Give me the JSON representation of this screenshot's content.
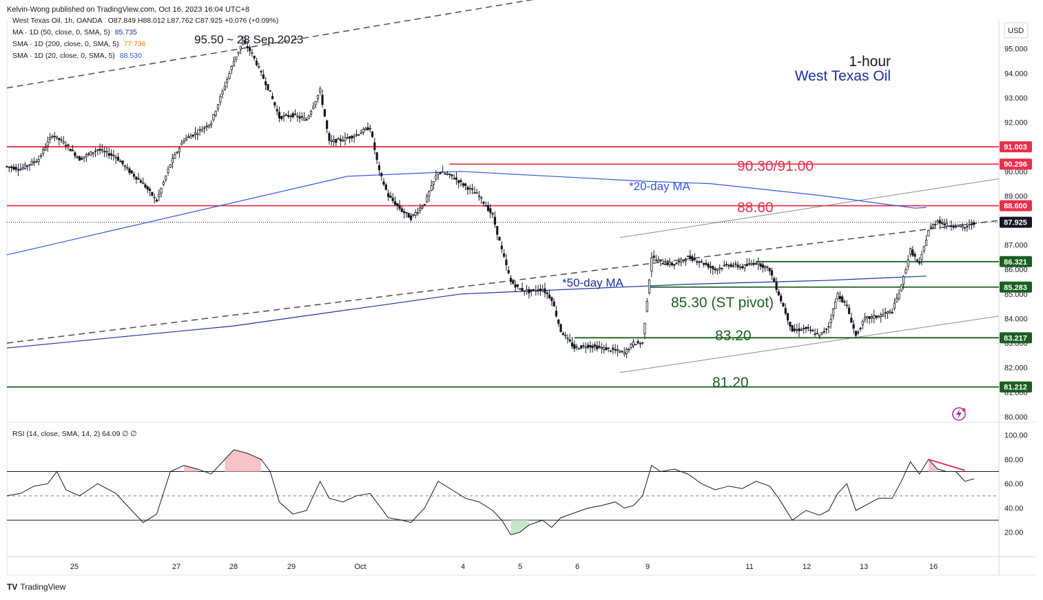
{
  "header": {
    "published": "Kelvin-Wong published on TradingView.com, Oct 16, 2023 16:04 UTC+8"
  },
  "legend": {
    "symbol_line": "West Texas Oil, 1h, OANDA",
    "ohlc": "O87.849  H88.012  L87.762  C87.925  +0.076 (+0.09%)",
    "ma50_label": "MA · 1D (50, close, 0, SMA, 5)",
    "ma50_value": "85.735",
    "sma200_label": "SMA · 1D (200, close, 0, SMA, 5)",
    "sma200_value": "77.736",
    "sma20_label": "SMA · 1D (20, close, 0, SMA, 5)",
    "sma20_value": "88.530"
  },
  "rsi_legend": "RSI (14, close, SMA, 14, 2)  64.09  ∅  ∅",
  "footer": {
    "logo": "TV",
    "brand": "TradingView"
  },
  "colors": {
    "up": "#131722",
    "resistance": "#e8304a",
    "support": "#1b5e20",
    "ma20": "#3355dd",
    "ma50": "#1a2f9c",
    "price_tag": "#131722",
    "rsi_overbought_fill": "#f6c3c7",
    "rsi_oversold_fill": "#c8e6c9"
  },
  "chart_data": {
    "type": "candlestick",
    "currency": "USD",
    "y_ticks": [
      "95.000",
      "94.000",
      "93.000",
      "92.000",
      "91.000",
      "90.000",
      "89.000",
      "88.000",
      "87.000",
      "86.000",
      "85.000",
      "84.000",
      "83.000",
      "82.000",
      "81.000",
      "80.000"
    ],
    "ylim": [
      79.8,
      96.2
    ],
    "x_ticks": [
      "25",
      "27",
      "28",
      "29",
      "Oct",
      "4",
      "5",
      "6",
      "9",
      "11",
      "12",
      "13",
      "16"
    ],
    "price_tags": [
      {
        "label": "91.003",
        "value": 91.003,
        "color": "#e8304a"
      },
      {
        "label": "90.296",
        "value": 90.296,
        "color": "#e8304a"
      },
      {
        "label": "88.600",
        "value": 88.6,
        "color": "#e8304a"
      },
      {
        "label": "87.925",
        "value": 87.925,
        "color": "#131722"
      },
      {
        "label": "86.321",
        "value": 86.321,
        "color": "#1b5e20"
      },
      {
        "label": "85.283",
        "value": 85.283,
        "color": "#1b5e20"
      },
      {
        "label": "83.217",
        "value": 83.217,
        "color": "#1b5e20"
      },
      {
        "label": "81.212",
        "value": 81.212,
        "color": "#1b5e20"
      }
    ],
    "horizontal_levels": [
      {
        "value": 91.003,
        "color": "#e8304a",
        "label": "90.30/91.00"
      },
      {
        "value": 90.296,
        "color": "#e8304a",
        "label": ""
      },
      {
        "value": 88.6,
        "color": "#e8304a",
        "label": "88.60"
      },
      {
        "value": 86.321,
        "color": "#1b5e20",
        "label": ""
      },
      {
        "value": 85.283,
        "color": "#1b5e20",
        "label": "85.30 (ST pivot)"
      },
      {
        "value": 83.217,
        "color": "#1b5e20",
        "label": "83.20"
      },
      {
        "value": 81.212,
        "color": "#1b5e20",
        "label": "81.20"
      }
    ],
    "annotations": {
      "peak": "95.50 ~ 28 Sep 2023",
      "timeframe": "1-hour",
      "instrument": "West Texas Oil",
      "ma20": "*20-day MA",
      "ma50": "*50-day MA"
    },
    "price_path": [
      [
        0,
        90.2
      ],
      [
        6,
        90.1
      ],
      [
        14,
        90.5
      ],
      [
        20,
        91.5
      ],
      [
        26,
        91.1
      ],
      [
        32,
        90.5
      ],
      [
        40,
        90.9
      ],
      [
        48,
        90.6
      ],
      [
        54,
        90.0
      ],
      [
        60,
        89.5
      ],
      [
        66,
        88.8
      ],
      [
        72,
        90.3
      ],
      [
        78,
        91.3
      ],
      [
        84,
        91.6
      ],
      [
        90,
        92.0
      ],
      [
        96,
        93.5
      ],
      [
        100,
        94.5
      ],
      [
        104,
        95.3
      ],
      [
        108,
        94.8
      ],
      [
        112,
        94.0
      ],
      [
        116,
        93.2
      ],
      [
        120,
        92.2
      ],
      [
        126,
        92.3
      ],
      [
        132,
        92.1
      ],
      [
        138,
        93.3
      ],
      [
        142,
        91.2
      ],
      [
        148,
        91.3
      ],
      [
        154,
        91.5
      ],
      [
        160,
        91.8
      ],
      [
        164,
        90.0
      ],
      [
        168,
        89.0
      ],
      [
        174,
        88.4
      ],
      [
        178,
        88.1
      ],
      [
        184,
        88.7
      ],
      [
        190,
        90.0
      ],
      [
        196,
        89.8
      ],
      [
        202,
        89.4
      ],
      [
        208,
        89.0
      ],
      [
        214,
        88.2
      ],
      [
        218,
        86.8
      ],
      [
        222,
        85.5
      ],
      [
        226,
        85.2
      ],
      [
        230,
        85.1
      ],
      [
        236,
        85.2
      ],
      [
        240,
        84.8
      ],
      [
        244,
        83.5
      ],
      [
        250,
        82.8
      ],
      [
        256,
        82.9
      ],
      [
        262,
        82.8
      ],
      [
        268,
        82.7
      ],
      [
        272,
        82.6
      ],
      [
        276,
        83.0
      ],
      [
        280,
        83.0
      ],
      [
        284,
        86.5
      ],
      [
        288,
        86.3
      ],
      [
        294,
        86.2
      ],
      [
        300,
        86.5
      ],
      [
        306,
        86.3
      ],
      [
        312,
        86.0
      ],
      [
        318,
        86.2
      ],
      [
        324,
        86.1
      ],
      [
        330,
        86.3
      ],
      [
        336,
        86.0
      ],
      [
        340,
        85.0
      ],
      [
        346,
        83.5
      ],
      [
        352,
        83.6
      ],
      [
        358,
        83.3
      ],
      [
        362,
        83.7
      ],
      [
        366,
        85.0
      ],
      [
        370,
        84.5
      ],
      [
        374,
        83.3
      ],
      [
        378,
        84.0
      ],
      [
        384,
        84.1
      ],
      [
        390,
        84.3
      ],
      [
        394,
        85.3
      ],
      [
        398,
        86.8
      ],
      [
        402,
        86.2
      ],
      [
        406,
        87.6
      ],
      [
        410,
        88.0
      ],
      [
        414,
        87.8
      ],
      [
        418,
        87.8
      ],
      [
        422,
        87.7
      ],
      [
        426,
        87.9
      ]
    ],
    "ma20_path": [
      [
        0,
        86.6
      ],
      [
        150,
        89.8
      ],
      [
        200,
        90.0
      ],
      [
        280,
        89.6
      ],
      [
        310,
        89.5
      ],
      [
        360,
        89.0
      ],
      [
        400,
        88.5
      ],
      [
        405,
        88.53
      ]
    ],
    "ma50_path": [
      [
        0,
        82.8
      ],
      [
        100,
        83.7
      ],
      [
        200,
        85.0
      ],
      [
        300,
        85.4
      ],
      [
        360,
        85.55
      ],
      [
        405,
        85.73
      ]
    ],
    "channel_upper_dashed": [
      [
        0,
        93.4
      ],
      [
        328,
        98.5
      ]
    ],
    "channel_lower_dashed": [
      [
        0,
        83.0
      ],
      [
        437,
        88.0
      ]
    ],
    "channel_upper_solid": [
      [
        270,
        87.3
      ],
      [
        437,
        89.7
      ]
    ],
    "channel_lower_solid": [
      [
        270,
        81.8
      ],
      [
        437,
        84.1
      ]
    ],
    "rsi": {
      "ylim": [
        0,
        110
      ],
      "y_ticks": [
        "100.00",
        "80.00",
        "60.00",
        "40.00",
        "20.00"
      ],
      "overbought": 70,
      "oversold": 30,
      "mid": 50,
      "path": [
        [
          0,
          50
        ],
        [
          6,
          52
        ],
        [
          12,
          58
        ],
        [
          18,
          60
        ],
        [
          22,
          70
        ],
        [
          26,
          55
        ],
        [
          32,
          50
        ],
        [
          40,
          60
        ],
        [
          48,
          52
        ],
        [
          54,
          40
        ],
        [
          60,
          28
        ],
        [
          66,
          35
        ],
        [
          72,
          70
        ],
        [
          78,
          75
        ],
        [
          84,
          72
        ],
        [
          90,
          68
        ],
        [
          96,
          80
        ],
        [
          100,
          88
        ],
        [
          106,
          85
        ],
        [
          112,
          80
        ],
        [
          116,
          70
        ],
        [
          120,
          45
        ],
        [
          126,
          35
        ],
        [
          132,
          38
        ],
        [
          138,
          62
        ],
        [
          142,
          48
        ],
        [
          148,
          45
        ],
        [
          154,
          50
        ],
        [
          160,
          52
        ],
        [
          164,
          42
        ],
        [
          168,
          32
        ],
        [
          174,
          30
        ],
        [
          178,
          28
        ],
        [
          184,
          40
        ],
        [
          190,
          62
        ],
        [
          196,
          55
        ],
        [
          202,
          48
        ],
        [
          208,
          45
        ],
        [
          214,
          38
        ],
        [
          218,
          30
        ],
        [
          222,
          18
        ],
        [
          226,
          20
        ],
        [
          230,
          26
        ],
        [
          236,
          30
        ],
        [
          240,
          24
        ],
        [
          244,
          32
        ],
        [
          250,
          36
        ],
        [
          256,
          40
        ],
        [
          262,
          42
        ],
        [
          268,
          45
        ],
        [
          272,
          40
        ],
        [
          276,
          42
        ],
        [
          280,
          50
        ],
        [
          284,
          75
        ],
        [
          288,
          70
        ],
        [
          294,
          72
        ],
        [
          300,
          68
        ],
        [
          306,
          60
        ],
        [
          312,
          55
        ],
        [
          318,
          58
        ],
        [
          324,
          56
        ],
        [
          330,
          62
        ],
        [
          336,
          58
        ],
        [
          340,
          48
        ],
        [
          346,
          30
        ],
        [
          352,
          38
        ],
        [
          358,
          34
        ],
        [
          362,
          38
        ],
        [
          366,
          52
        ],
        [
          370,
          60
        ],
        [
          374,
          38
        ],
        [
          378,
          42
        ],
        [
          384,
          48
        ],
        [
          390,
          48
        ],
        [
          394,
          62
        ],
        [
          398,
          78
        ],
        [
          402,
          68
        ],
        [
          406,
          80
        ],
        [
          410,
          72
        ],
        [
          414,
          70
        ],
        [
          418,
          70
        ],
        [
          422,
          62
        ],
        [
          426,
          64
        ]
      ],
      "divergence_line": [
        [
          406,
          80
        ],
        [
          422,
          71
        ]
      ]
    }
  }
}
